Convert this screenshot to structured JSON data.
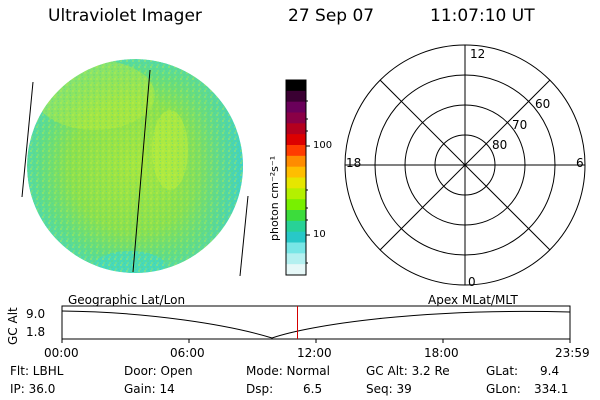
{
  "header": {
    "title": "Ultraviolet Imager",
    "date": "27 Sep 07",
    "time": "11:07:10 UT"
  },
  "colorbar": {
    "unit_label": "photon cm⁻²s⁻¹",
    "tick_labels": [
      "100",
      "10"
    ],
    "colors": [
      "#000000",
      "#3a0032",
      "#6a005a",
      "#8a0046",
      "#b4001e",
      "#dc0000",
      "#ff3c00",
      "#ff8c00",
      "#ffbe00",
      "#e6e600",
      "#b4f000",
      "#78f000",
      "#3cdc3c",
      "#28d296",
      "#28c8c8",
      "#78e6e6",
      "#b4f0f0",
      "#e6f8f8"
    ]
  },
  "polar_plot": {
    "labels_mlt": {
      "top": "12",
      "bottom": "0",
      "left": "18",
      "right": "6"
    },
    "labels_lat": [
      "80",
      "70",
      "60"
    ]
  },
  "timeline": {
    "axis_label": "GC Alt",
    "y_ticks": [
      "9.0",
      "1.8"
    ],
    "left_caption": "Geographic Lat/Lon",
    "right_caption": "Apex MLat/MLT",
    "x_ticks": [
      "00:00",
      "06:00",
      "12:00",
      "18:00",
      "23:59"
    ],
    "marker_time": "11:07:10",
    "marker_color": "#d40000"
  },
  "status": {
    "flt": "Flt: LBHL",
    "door": "Door: Open",
    "mode": "Mode: Normal",
    "gc_alt": "GC Alt: 3.2 Re",
    "glat_label": "GLat:",
    "glat_value": "9.4",
    "ip": "IP: 36.0",
    "gain": "Gain: 14",
    "dsp_label": "Dsp:",
    "dsp_value": "6.5",
    "seq": "Seq: 39",
    "glon_label": "GLon:",
    "glon_value": "334.1"
  },
  "colors": {
    "disk_base": "#8fe04a",
    "disk_edge": "#40d8c8"
  }
}
